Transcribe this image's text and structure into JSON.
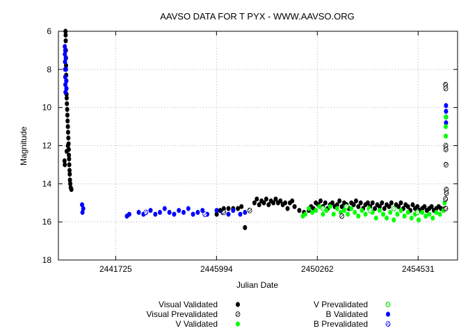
{
  "chart_data": {
    "type": "scatter",
    "title": "AAVSO DATA FOR T PYX - WWW.AAVSO.ORG",
    "xlabel": "Julian Date",
    "ylabel": "Magnitude",
    "x_ticks": [
      2441725,
      2445994,
      2450262,
      2454531
    ],
    "y_ticks": [
      6,
      8,
      10,
      12,
      14,
      16,
      18
    ],
    "xlim": [
      2439300,
      2456200
    ],
    "ylim": [
      18,
      6
    ],
    "y_inverted": true,
    "grid": true,
    "legend_position": "bottom",
    "series": [
      {
        "name": "Visual Validated",
        "marker": "filled-black",
        "color": "#000000",
        "points": [
          [
            2439600,
            6.0
          ],
          [
            2439605,
            6.2
          ],
          [
            2439610,
            6.5
          ],
          [
            2439615,
            7.0
          ],
          [
            2439620,
            7.4
          ],
          [
            2439625,
            7.8
          ],
          [
            2439630,
            8.3
          ],
          [
            2439635,
            8.6
          ],
          [
            2439640,
            9.0
          ],
          [
            2439645,
            9.3
          ],
          [
            2439650,
            9.5
          ],
          [
            2439660,
            9.8
          ],
          [
            2439670,
            10.1
          ],
          [
            2439680,
            10.4
          ],
          [
            2439690,
            10.7
          ],
          [
            2439700,
            11.0
          ],
          [
            2439710,
            11.3
          ],
          [
            2439720,
            11.6
          ],
          [
            2439730,
            11.9
          ],
          [
            2439740,
            12.2
          ],
          [
            2439745,
            12.5
          ],
          [
            2439750,
            12.7
          ],
          [
            2439760,
            13.0
          ],
          [
            2439770,
            13.3
          ],
          [
            2439780,
            13.5
          ],
          [
            2439790,
            13.8
          ],
          [
            2439800,
            14.0
          ],
          [
            2439820,
            14.2
          ],
          [
            2439850,
            14.3
          ],
          [
            2439560,
            12.8
          ],
          [
            2439570,
            13.0
          ],
          [
            2439650,
            12.3
          ],
          [
            2439700,
            12.0
          ],
          [
            2446000,
            15.6
          ],
          [
            2446150,
            15.4
          ],
          [
            2446300,
            15.3
          ],
          [
            2446500,
            15.3
          ],
          [
            2446700,
            15.3
          ],
          [
            2446900,
            15.3
          ],
          [
            2447050,
            15.2
          ],
          [
            2447200,
            16.3
          ],
          [
            2447600,
            15.0
          ],
          [
            2447700,
            14.8
          ],
          [
            2447800,
            15.1
          ],
          [
            2447900,
            14.9
          ],
          [
            2448000,
            15.0
          ],
          [
            2448100,
            14.8
          ],
          [
            2448200,
            15.1
          ],
          [
            2448300,
            14.9
          ],
          [
            2448400,
            15.0
          ],
          [
            2448500,
            14.8
          ],
          [
            2448600,
            15.0
          ],
          [
            2448700,
            14.9
          ],
          [
            2448800,
            15.1
          ],
          [
            2448900,
            15.0
          ],
          [
            2449000,
            15.3
          ],
          [
            2449100,
            15.0
          ],
          [
            2449200,
            14.9
          ],
          [
            2449300,
            15.2
          ],
          [
            2449500,
            15.4
          ],
          [
            2449700,
            15.5
          ],
          [
            2449900,
            15.4
          ],
          [
            2450000,
            15.2
          ],
          [
            2450100,
            15.3
          ],
          [
            2450200,
            15.0
          ],
          [
            2450300,
            15.1
          ],
          [
            2450400,
            14.9
          ],
          [
            2450500,
            15.2
          ],
          [
            2450600,
            15.0
          ],
          [
            2450700,
            15.3
          ],
          [
            2450800,
            15.1
          ],
          [
            2450900,
            15.0
          ],
          [
            2451000,
            15.2
          ],
          [
            2451100,
            15.1
          ],
          [
            2451200,
            14.9
          ],
          [
            2451300,
            15.2
          ],
          [
            2451400,
            15.0
          ],
          [
            2451500,
            15.1
          ],
          [
            2451600,
            15.3
          ],
          [
            2451700,
            15.0
          ],
          [
            2451800,
            15.1
          ],
          [
            2451900,
            14.9
          ],
          [
            2452000,
            15.2
          ],
          [
            2452100,
            15.0
          ],
          [
            2452200,
            15.3
          ],
          [
            2452300,
            15.1
          ],
          [
            2452400,
            15.0
          ],
          [
            2452500,
            15.2
          ],
          [
            2452600,
            15.0
          ],
          [
            2452700,
            15.3
          ],
          [
            2452800,
            15.1
          ],
          [
            2452900,
            15.2
          ],
          [
            2453000,
            15.0
          ],
          [
            2453100,
            15.3
          ],
          [
            2453200,
            15.1
          ],
          [
            2453300,
            15.2
          ],
          [
            2453400,
            15.0
          ],
          [
            2453500,
            15.3
          ],
          [
            2453600,
            15.1
          ],
          [
            2453700,
            15.2
          ],
          [
            2453800,
            15.0
          ],
          [
            2453900,
            15.3
          ],
          [
            2454000,
            15.1
          ],
          [
            2454100,
            15.2
          ],
          [
            2454200,
            15.4
          ],
          [
            2454300,
            15.1
          ],
          [
            2454400,
            15.3
          ],
          [
            2454500,
            15.2
          ],
          [
            2454600,
            15.4
          ],
          [
            2454700,
            15.3
          ],
          [
            2454800,
            15.2
          ],
          [
            2454900,
            15.4
          ],
          [
            2455000,
            15.3
          ],
          [
            2455100,
            15.2
          ],
          [
            2455200,
            15.4
          ],
          [
            2455300,
            15.3
          ],
          [
            2455400,
            15.2
          ],
          [
            2455500,
            15.3
          ],
          [
            2455600,
            15.4
          ],
          [
            2455660,
            15.3
          ]
        ]
      },
      {
        "name": "Visual Prevalidated",
        "marker": "hatched-black",
        "color": "#000000",
        "points": [
          [
            2455690,
            8.8
          ],
          [
            2455700,
            9.0
          ],
          [
            2455700,
            12.0
          ],
          [
            2455705,
            12.2
          ],
          [
            2455710,
            13.0
          ],
          [
            2455720,
            14.3
          ],
          [
            2455730,
            14.5
          ],
          [
            2455690,
            14.8
          ],
          [
            2455700,
            15.3
          ],
          [
            2451300,
            15.7
          ],
          [
            2447400,
            15.4
          ],
          [
            2446300,
            15.5
          ]
        ]
      },
      {
        "name": "V Validated",
        "marker": "filled-green",
        "color": "#00ff00",
        "points": [
          [
            2449650,
            15.7
          ],
          [
            2449750,
            15.6
          ],
          [
            2449900,
            15.3
          ],
          [
            2450050,
            15.5
          ],
          [
            2450200,
            15.4
          ],
          [
            2450350,
            15.2
          ],
          [
            2450500,
            15.6
          ],
          [
            2450650,
            15.4
          ],
          [
            2450800,
            15.2
          ],
          [
            2450950,
            15.6
          ],
          [
            2451100,
            15.3
          ],
          [
            2451250,
            15.5
          ],
          [
            2451400,
            15.4
          ],
          [
            2451550,
            15.6
          ],
          [
            2451700,
            15.3
          ],
          [
            2451850,
            15.5
          ],
          [
            2452000,
            15.7
          ],
          [
            2452150,
            15.4
          ],
          [
            2452300,
            15.6
          ],
          [
            2452450,
            15.3
          ],
          [
            2452600,
            15.5
          ],
          [
            2452750,
            15.8
          ],
          [
            2452900,
            15.4
          ],
          [
            2453050,
            15.6
          ],
          [
            2453200,
            15.8
          ],
          [
            2453350,
            15.5
          ],
          [
            2453500,
            15.9
          ],
          [
            2453650,
            15.6
          ],
          [
            2453800,
            15.4
          ],
          [
            2453950,
            15.7
          ],
          [
            2454100,
            15.5
          ],
          [
            2454250,
            15.8
          ],
          [
            2454400,
            15.6
          ],
          [
            2454550,
            15.9
          ],
          [
            2454700,
            15.5
          ],
          [
            2454850,
            15.7
          ],
          [
            2455000,
            15.6
          ],
          [
            2455150,
            15.8
          ],
          [
            2455300,
            15.5
          ],
          [
            2455450,
            15.6
          ],
          [
            2455600,
            15.4
          ],
          [
            2455650,
            15.0
          ],
          [
            2455700,
            10.5
          ],
          [
            2455700,
            11.0
          ],
          [
            2455700,
            11.5
          ],
          [
            2455700,
            12.0
          ]
        ]
      },
      {
        "name": "V Prevalidated",
        "marker": "hatched-green",
        "color": "#00ff00",
        "points": [
          [
            2450500,
            15.3
          ],
          [
            2451500,
            15.2
          ],
          [
            2452500,
            15.4
          ],
          [
            2453500,
            15.3
          ],
          [
            2454500,
            15.5
          ]
        ]
      },
      {
        "name": "B Validated",
        "marker": "filled-blue",
        "color": "#0000ff",
        "points": [
          [
            2439570,
            6.8
          ],
          [
            2439575,
            7.2
          ],
          [
            2439580,
            7.6
          ],
          [
            2439585,
            8.0
          ],
          [
            2439590,
            8.4
          ],
          [
            2439595,
            8.8
          ],
          [
            2439600,
            9.2
          ],
          [
            2439610,
            7.4
          ],
          [
            2439620,
            8.0
          ],
          [
            2439630,
            8.6
          ],
          [
            2439640,
            9.0
          ],
          [
            2439590,
            7.0
          ],
          [
            2440300,
            15.1
          ],
          [
            2440350,
            15.3
          ],
          [
            2440320,
            15.5
          ],
          [
            2442200,
            15.7
          ],
          [
            2442300,
            15.6
          ],
          [
            2442700,
            15.5
          ],
          [
            2442900,
            15.6
          ],
          [
            2443200,
            15.4
          ],
          [
            2443400,
            15.6
          ],
          [
            2443600,
            15.5
          ],
          [
            2443800,
            15.3
          ],
          [
            2444000,
            15.5
          ],
          [
            2444200,
            15.6
          ],
          [
            2444400,
            15.4
          ],
          [
            2444600,
            15.5
          ],
          [
            2444800,
            15.3
          ],
          [
            2445000,
            15.6
          ],
          [
            2445200,
            15.5
          ],
          [
            2445400,
            15.4
          ],
          [
            2445600,
            15.6
          ],
          [
            2446000,
            15.4
          ],
          [
            2446250,
            15.5
          ],
          [
            2446500,
            15.6
          ],
          [
            2446700,
            15.4
          ],
          [
            2447000,
            15.6
          ],
          [
            2447200,
            15.5
          ],
          [
            2455710,
            9.9
          ],
          [
            2455710,
            10.2
          ],
          [
            2455710,
            10.5
          ],
          [
            2455710,
            10.8
          ]
        ]
      },
      {
        "name": "B Prevalidated",
        "marker": "hatched-blue",
        "color": "#0000ff",
        "points": [
          [
            2443000,
            15.5
          ],
          [
            2445500,
            15.6
          ]
        ]
      }
    ]
  }
}
